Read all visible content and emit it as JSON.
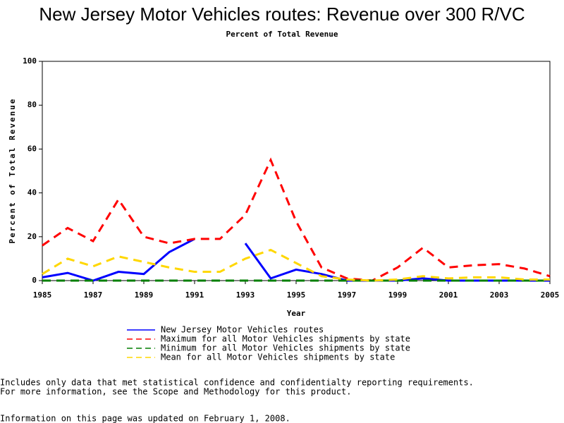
{
  "chart_data": {
    "type": "line",
    "title": "New Jersey Motor Vehicles routes: Revenue over 300 R/VC",
    "subtitle": "Percent of Total Revenue",
    "x_label": "Year",
    "y_label": "Percent of Total Revenue",
    "x": [
      1985,
      1986,
      1987,
      1988,
      1989,
      1990,
      1991,
      1992,
      1993,
      1994,
      1995,
      1996,
      1997,
      1998,
      1999,
      2000,
      2001,
      2002,
      2003,
      2004,
      2005
    ],
    "series": [
      {
        "name": "New Jersey Motor Vehicles routes",
        "color": "#0000ff",
        "dashed": false,
        "values": [
          1.5,
          3.5,
          0,
          4,
          3,
          13,
          19,
          null,
          17,
          1,
          5,
          3,
          0,
          0,
          0,
          1,
          0,
          0,
          0,
          0,
          0
        ]
      },
      {
        "name": "Maximum for all Motor Vehicles shipments by state",
        "color": "#ff0000",
        "dashed": true,
        "values": [
          16,
          24,
          18,
          37,
          20,
          17,
          19,
          19,
          30,
          55,
          27,
          6,
          1,
          0,
          6,
          15,
          6,
          7,
          7.5,
          5.5,
          2
        ]
      },
      {
        "name": "Minimum for all Motor Vehicles shipments by state",
        "color": "#007f00",
        "dashed": true,
        "values": [
          0,
          0,
          0,
          0,
          0,
          0,
          0,
          0,
          0,
          0,
          0,
          0,
          0,
          0,
          0,
          0,
          0,
          0,
          0,
          0,
          0
        ]
      },
      {
        "name": "Mean for all Motor Vehicles shipments by state",
        "color": "#ffd700",
        "dashed": true,
        "values": [
          3,
          10,
          6.5,
          11,
          8.5,
          6,
          4,
          4,
          10,
          14,
          8,
          2,
          0.5,
          0,
          0.5,
          2,
          1,
          1.5,
          1.5,
          0.5,
          0.5
        ]
      }
    ],
    "xlim": [
      1985,
      2005
    ],
    "ylim": [
      0,
      100
    ],
    "xticks": [
      1985,
      1987,
      1989,
      1991,
      1993,
      1995,
      1997,
      1999,
      2001,
      2003,
      2005
    ],
    "yticks": [
      0,
      20,
      40,
      60,
      80,
      100
    ]
  },
  "notes": [
    "Includes only data that met statistical confidence and confidentialty reporting requirements.",
    "For more information, see the Scope and Methodology for this product.",
    "Information on this page was updated on February 1, 2008."
  ]
}
